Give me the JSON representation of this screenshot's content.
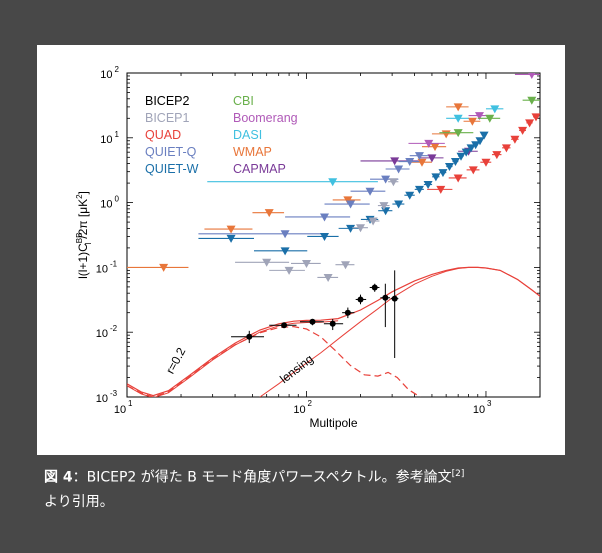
{
  "caption": {
    "label": "図 4",
    "separator": "：",
    "text_line1": "BICEP2 が得た B モード角度パワースペクトル。参考論文",
    "ref": "[2]",
    "text_line2": "より引用。"
  },
  "chart_data": {
    "type": "scatter",
    "xlabel": "Multipole",
    "ylabel": "l(l+1)C",
    "ylabel_sup": "BB",
    "ylabel_sub": "l",
    "ylabel_tail": "/2π [μK",
    "ylabel_tail_sup": "2",
    "ylabel_close": "]",
    "x_scale": "log",
    "y_scale": "log",
    "xlim": [
      10,
      2000
    ],
    "ylim": [
      0.001,
      100
    ],
    "x_ticks": [
      {
        "base": "10",
        "exp": "1",
        "value": 10
      },
      {
        "base": "10",
        "exp": "2",
        "value": 100
      },
      {
        "base": "10",
        "exp": "3",
        "value": 1000
      }
    ],
    "y_ticks": [
      {
        "base": "10",
        "exp": "-3",
        "value": 0.001
      },
      {
        "base": "10",
        "exp": "-2",
        "value": 0.01
      },
      {
        "base": "10",
        "exp": "-1",
        "value": 0.1
      },
      {
        "base": "10",
        "exp": "0",
        "value": 1
      },
      {
        "base": "10",
        "exp": "1",
        "value": 10
      },
      {
        "base": "10",
        "exp": "2",
        "value": 100
      }
    ],
    "legend_left": [
      {
        "name": "BICEP2",
        "color": "#000000"
      },
      {
        "name": "BICEP1",
        "color": "#a0a4b8"
      },
      {
        "name": "QUAD",
        "color": "#e8413a"
      },
      {
        "name": "QUIET-Q",
        "color": "#6a7fc0"
      },
      {
        "name": "QUIET-W",
        "color": "#1a6fa8"
      }
    ],
    "legend_right": [
      {
        "name": "CBI",
        "color": "#6ab04c"
      },
      {
        "name": "Boomerang",
        "color": "#b05ab8"
      },
      {
        "name": "DASI",
        "color": "#40c0e0"
      },
      {
        "name": "WMAP",
        "color": "#e8763a"
      },
      {
        "name": "CAPMAP",
        "color": "#7a3a98"
      }
    ],
    "annotations": [
      {
        "text": "r=0.2",
        "x": 18,
        "y": 0.0022,
        "angle": -62
      },
      {
        "text": "lensing",
        "x": 75,
        "y": 0.0016,
        "angle": -38
      }
    ],
    "bicep2_points": [
      {
        "x": 48,
        "y": 0.0085,
        "xerr": [
          38,
          58
        ],
        "yerr": [
          0.0068,
          0.0105
        ]
      },
      {
        "x": 75,
        "y": 0.0128,
        "xerr": [
          62,
          88
        ],
        "yerr": [
          0.0118,
          0.0138
        ]
      },
      {
        "x": 108,
        "y": 0.0145,
        "xerr": [
          92,
          125
        ],
        "yerr": [
          0.0128,
          0.016
        ]
      },
      {
        "x": 140,
        "y": 0.0135,
        "xerr": [
          125,
          160
        ],
        "yerr": [
          0.0108,
          0.016
        ]
      },
      {
        "x": 170,
        "y": 0.02,
        "xerr": [
          158,
          185
        ],
        "yerr": [
          0.0165,
          0.024
        ]
      },
      {
        "x": 200,
        "y": 0.032,
        "xerr": [
          188,
          215
        ],
        "yerr": [
          0.027,
          0.038
        ]
      },
      {
        "x": 240,
        "y": 0.049,
        "xerr": [
          225,
          255
        ],
        "yerr": [
          0.042,
          0.056
        ]
      },
      {
        "x": 275,
        "y": 0.034,
        "xerr": [
          258,
          292
        ],
        "yerr": [
          0.012,
          0.056
        ]
      },
      {
        "x": 310,
        "y": 0.033,
        "xerr": [
          295,
          325
        ],
        "yerr": [
          0.004,
          0.09
        ]
      }
    ],
    "upper_limit_series": [
      {
        "name": "WMAP",
        "color": "#e8763a",
        "points": [
          {
            "x": 16,
            "y": 0.1,
            "xerr": [
              10,
              22
            ]
          },
          {
            "x": 38,
            "y": 0.39,
            "xerr": [
              27,
              50
            ]
          },
          {
            "x": 62,
            "y": 0.7,
            "xerr": [
              50,
              75
            ]
          },
          {
            "x": 170,
            "y": 1.1,
            "xerr": [
              140,
              200
            ]
          },
          {
            "x": 440,
            "y": 4.2,
            "xerr": [
              380,
              500
            ]
          },
          {
            "x": 520,
            "y": 7.3,
            "xerr": [
              440,
              600
            ]
          },
          {
            "x": 600,
            "y": 11.5,
            "xerr": [
              500,
              700
            ]
          },
          {
            "x": 700,
            "y": 30,
            "xerr": [
              600,
              800
            ]
          },
          {
            "x": 840,
            "y": 18,
            "xerr": [
              750,
              930
            ]
          }
        ]
      },
      {
        "name": "DASI",
        "color": "#40c0e0",
        "points": [
          {
            "x": 140,
            "y": 2.1,
            "xerr": [
              28,
              250
            ]
          },
          {
            "x": 700,
            "y": 20,
            "xerr": [
              600,
              800
            ]
          },
          {
            "x": 1120,
            "y": 28,
            "xerr": [
              1000,
              1250
            ]
          }
        ]
      },
      {
        "name": "CAPMAP",
        "color": "#7a3a98",
        "points": [
          {
            "x": 310,
            "y": 4.4,
            "xerr": [
              200,
              420
            ]
          },
          {
            "x": 500,
            "y": 4.9,
            "xerr": [
              420,
              580
            ]
          },
          {
            "x": 800,
            "y": 6.2,
            "xerr": [
              700,
              900
            ]
          }
        ]
      },
      {
        "name": "Boomerang",
        "color": "#b05ab8",
        "points": [
          {
            "x": 480,
            "y": 8.2,
            "xerr": [
              370,
              590
            ]
          },
          {
            "x": 920,
            "y": 22,
            "xerr": [
              800,
              1050
            ]
          },
          {
            "x": 1800,
            "y": 95,
            "xerr": [
              1450,
              2000
            ]
          }
        ]
      },
      {
        "name": "CBI",
        "color": "#6ab04c",
        "points": [
          {
            "x": 700,
            "y": 12,
            "xerr": [
              550,
              850
            ]
          },
          {
            "x": 1050,
            "y": 20,
            "xerr": [
              900,
              1200
            ]
          },
          {
            "x": 1800,
            "y": 38,
            "xerr": [
              1600,
              2000
            ]
          }
        ]
      },
      {
        "name": "QUIET-Q",
        "color": "#6a7fc0",
        "points": [
          {
            "x": 76,
            "y": 0.33,
            "xerr": [
              25,
              125
            ]
          },
          {
            "x": 126,
            "y": 0.6,
            "xerr": [
              76,
              175
            ]
          },
          {
            "x": 176,
            "y": 0.95,
            "xerr": [
              126,
              225
            ]
          },
          {
            "x": 226,
            "y": 1.5,
            "xerr": [
              176,
              275
            ]
          },
          {
            "x": 276,
            "y": 2.3,
            "xerr": [
              226,
              325
            ]
          },
          {
            "x": 326,
            "y": 3.3,
            "xerr": [
              276,
              375
            ]
          },
          {
            "x": 376,
            "y": 4.3,
            "xerr": [
              326,
              425
            ]
          },
          {
            "x": 426,
            "y": 5.3,
            "xerr": [
              376,
              475
            ]
          }
        ]
      },
      {
        "name": "QUIET-W",
        "color": "#1a6fa8",
        "points": [
          {
            "x": 38,
            "y": 0.28,
            "xerr": [
              25,
              51
            ]
          },
          {
            "x": 76,
            "y": 0.18,
            "xerr": [
              51,
              101
            ]
          },
          {
            "x": 126,
            "y": 0.3,
            "xerr": [
              101,
              151
            ]
          },
          {
            "x": 176,
            "y": 0.4,
            "xerr": [
              151,
              201
            ]
          },
          {
            "x": 226,
            "y": 0.55,
            "xerr": [
              201,
              251
            ]
          },
          {
            "x": 276,
            "y": 0.75,
            "xerr": [
              251,
              301
            ]
          },
          {
            "x": 326,
            "y": 0.95,
            "xerr": [
              301,
              351
            ]
          },
          {
            "x": 376,
            "y": 1.3,
            "xerr": [
              351,
              401
            ]
          },
          {
            "x": 426,
            "y": 1.6,
            "xerr": [
              401,
              451
            ]
          },
          {
            "x": 476,
            "y": 1.9,
            "xerr": [
              451,
              501
            ]
          },
          {
            "x": 526,
            "y": 2.5,
            "xerr": [
              501,
              551
            ]
          },
          {
            "x": 576,
            "y": 2.9,
            "xerr": [
              551,
              601
            ]
          },
          {
            "x": 626,
            "y": 3.6,
            "xerr": [
              601,
              651
            ]
          },
          {
            "x": 676,
            "y": 4.3,
            "xerr": [
              651,
              701
            ]
          },
          {
            "x": 726,
            "y": 5.2,
            "xerr": [
              701,
              751
            ]
          },
          {
            "x": 776,
            "y": 6.0,
            "xerr": [
              751,
              801
            ]
          },
          {
            "x": 826,
            "y": 7.0,
            "xerr": [
              801,
              851
            ]
          },
          {
            "x": 876,
            "y": 7.8,
            "xerr": [
              851,
              901
            ]
          },
          {
            "x": 926,
            "y": 9.0,
            "xerr": [
              901,
              951
            ]
          },
          {
            "x": 976,
            "y": 11,
            "xerr": [
              951,
              1001
            ]
          }
        ]
      },
      {
        "name": "BICEP1",
        "color": "#a0a4b8",
        "points": [
          {
            "x": 60,
            "y": 0.12,
            "xerr": [
              40,
              80
            ]
          },
          {
            "x": 80,
            "y": 0.09,
            "xerr": [
              62,
              98
            ]
          },
          {
            "x": 100,
            "y": 0.115,
            "xerr": [
              82,
              120
            ]
          },
          {
            "x": 132,
            "y": 0.07,
            "xerr": [
              115,
              150
            ]
          },
          {
            "x": 165,
            "y": 0.11,
            "xerr": [
              145,
              185
            ]
          },
          {
            "x": 200,
            "y": 0.41,
            "xerr": [
              180,
              220
            ]
          },
          {
            "x": 235,
            "y": 0.52,
            "xerr": [
              215,
              255
            ]
          },
          {
            "x": 270,
            "y": 0.9,
            "xerr": [
              250,
              290
            ]
          },
          {
            "x": 305,
            "y": 2.1,
            "xerr": [
              285,
              325
            ]
          }
        ]
      },
      {
        "name": "QUAD",
        "color": "#e8413a",
        "points": [
          {
            "x": 560,
            "y": 1.6,
            "xerr": [
              470,
              650
            ]
          },
          {
            "x": 700,
            "y": 2.4,
            "xerr": [
              620,
              780
            ]
          },
          {
            "x": 850,
            "y": 3.2,
            "xerr": [
              780,
              920
            ]
          },
          {
            "x": 1000,
            "y": 4.2,
            "xerr": [
              930,
              1070
            ]
          },
          {
            "x": 1150,
            "y": 5.5,
            "xerr": [
              1080,
              1220
            ]
          },
          {
            "x": 1300,
            "y": 7.0,
            "xerr": [
              1230,
              1370
            ]
          },
          {
            "x": 1450,
            "y": 9.5,
            "xerr": [
              1380,
              1520
            ]
          },
          {
            "x": 1600,
            "y": 13,
            "xerr": [
              1530,
              1670
            ]
          },
          {
            "x": 1750,
            "y": 17,
            "xerr": [
              1680,
              1820
            ]
          },
          {
            "x": 1900,
            "y": 21,
            "xerr": [
              1830,
              1970
            ]
          }
        ]
      }
    ],
    "model_curves": {
      "color": "#e8413a",
      "total": [
        [
          10,
          0.0016
        ],
        [
          12,
          0.0012
        ],
        [
          14,
          0.00105
        ],
        [
          17,
          0.00125
        ],
        [
          22,
          0.0021
        ],
        [
          30,
          0.004
        ],
        [
          40,
          0.0068
        ],
        [
          55,
          0.0108
        ],
        [
          70,
          0.0135
        ],
        [
          85,
          0.0148
        ],
        [
          100,
          0.0152
        ],
        [
          120,
          0.0153
        ],
        [
          150,
          0.0162
        ],
        [
          200,
          0.022
        ],
        [
          250,
          0.031
        ],
        [
          300,
          0.042
        ],
        [
          400,
          0.062
        ],
        [
          500,
          0.078
        ],
        [
          600,
          0.09
        ],
        [
          700,
          0.098
        ],
        [
          800,
          0.1
        ],
        [
          900,
          0.1
        ],
        [
          1000,
          0.098
        ],
        [
          1200,
          0.09
        ],
        [
          1500,
          0.065
        ],
        [
          1800,
          0.045
        ],
        [
          2000,
          0.036
        ]
      ],
      "tensor": [
        [
          10,
          0.0015
        ],
        [
          12,
          0.00115
        ],
        [
          14,
          0.001
        ],
        [
          17,
          0.0012
        ],
        [
          22,
          0.002
        ],
        [
          30,
          0.0038
        ],
        [
          40,
          0.0064
        ],
        [
          55,
          0.0098
        ],
        [
          70,
          0.0118
        ],
        [
          85,
          0.0122
        ],
        [
          100,
          0.0112
        ],
        [
          120,
          0.0085
        ],
        [
          145,
          0.0052
        ],
        [
          175,
          0.0031
        ],
        [
          210,
          0.0022
        ],
        [
          250,
          0.0021
        ],
        [
          285,
          0.0024
        ],
        [
          320,
          0.002
        ],
        [
          370,
          0.0013
        ],
        [
          430,
          0.001
        ]
      ],
      "lensing": [
        [
          55,
          0.001
        ],
        [
          70,
          0.0016
        ],
        [
          90,
          0.0027
        ],
        [
          120,
          0.0048
        ],
        [
          160,
          0.009
        ],
        [
          200,
          0.0145
        ],
        [
          250,
          0.023
        ],
        [
          300,
          0.034
        ],
        [
          400,
          0.055
        ],
        [
          500,
          0.073
        ],
        [
          600,
          0.087
        ],
        [
          700,
          0.096
        ],
        [
          800,
          0.1
        ],
        [
          900,
          0.1
        ],
        [
          1000,
          0.098
        ],
        [
          1200,
          0.09
        ],
        [
          1500,
          0.065
        ],
        [
          1800,
          0.045
        ],
        [
          2000,
          0.036
        ]
      ]
    }
  }
}
